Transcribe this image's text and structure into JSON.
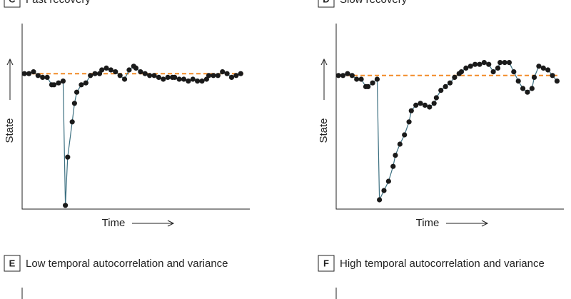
{
  "chart_data": [
    {
      "type": "line",
      "panel_label": "C",
      "title": "Fast recovery",
      "xlabel": "Time",
      "ylabel": "State",
      "xlim": [
        0,
        100
      ],
      "ylim": [
        0,
        100
      ],
      "baseline": 73,
      "baseline_color": "#f28c28",
      "line_color": "#3b6f80",
      "marker_color": "#1a1a1a",
      "x": [
        1,
        3,
        5,
        7,
        9,
        11,
        13,
        14,
        16,
        18,
        19,
        20,
        22,
        23,
        24,
        26,
        28,
        30,
        32,
        34,
        35,
        37,
        39,
        41,
        43,
        45,
        47,
        49,
        50,
        52,
        54,
        56,
        58,
        60,
        62,
        64,
        66,
        67,
        69,
        71,
        73,
        75,
        77,
        79,
        81,
        82,
        84,
        86,
        88,
        90,
        92,
        94,
        96
      ],
      "values": [
        73,
        73,
        74,
        72,
        71,
        71,
        67,
        67,
        68,
        69,
        2,
        28,
        47,
        57,
        63,
        67,
        68,
        72,
        73,
        73,
        75,
        76,
        75,
        74,
        72,
        70,
        75,
        77,
        76,
        74,
        73,
        72,
        72,
        71,
        70,
        71,
        71,
        71,
        70,
        70,
        69,
        70,
        69,
        69,
        70,
        72,
        72,
        72,
        74,
        73,
        71,
        72,
        73
      ]
    },
    {
      "type": "line",
      "panel_label": "D",
      "title": "Slow recovery",
      "xlabel": "Time",
      "ylabel": "State",
      "xlim": [
        0,
        100
      ],
      "ylim": [
        0,
        100
      ],
      "baseline": 72,
      "baseline_color": "#f28c28",
      "line_color": "#3b6f80",
      "marker_color": "#1a1a1a",
      "x": [
        1,
        3,
        5,
        7,
        9,
        11,
        13,
        14,
        16,
        18,
        19,
        21,
        23,
        25,
        26,
        28,
        30,
        32,
        33,
        35,
        37,
        39,
        41,
        43,
        44,
        46,
        48,
        50,
        52,
        54,
        55,
        57,
        59,
        61,
        63,
        65,
        67,
        69,
        71,
        72,
        74,
        76,
        78,
        80,
        82,
        84,
        86,
        87,
        89,
        91,
        93,
        95,
        97
      ],
      "values": [
        72,
        72,
        73,
        72,
        70,
        70,
        66,
        66,
        68,
        70,
        5,
        10,
        15,
        23,
        29,
        35,
        40,
        47,
        53,
        56,
        57,
        56,
        55,
        57,
        60,
        64,
        66,
        68,
        71,
        73,
        74,
        76,
        77,
        78,
        78,
        79,
        78,
        74,
        76,
        79,
        79,
        79,
        74,
        69,
        65,
        63,
        65,
        71,
        77,
        76,
        75,
        72,
        69
      ]
    }
  ],
  "panels": [
    {
      "label": "E",
      "title": "Low temporal autocorrelation and variance"
    },
    {
      "label": "F",
      "title": "High temporal autocorrelation and variance"
    }
  ]
}
